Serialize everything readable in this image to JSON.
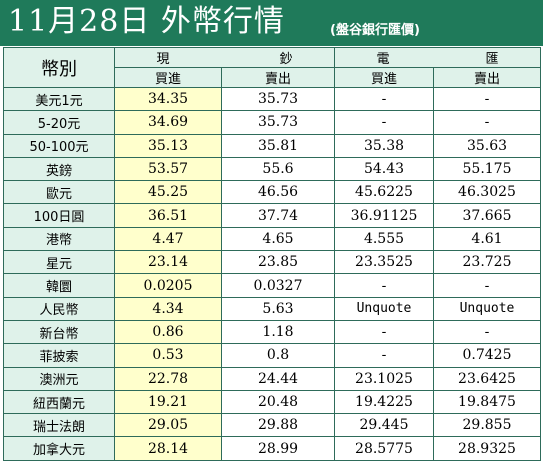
{
  "title": {
    "main": "11月28日 外幣行情",
    "sub": "(盤谷銀行匯價)"
  },
  "headers": {
    "currency": "幣別",
    "cash_left": "現",
    "cash_right": "鈔",
    "spot_left": "電",
    "spot_right": "匯",
    "buy": "買進",
    "sell": "賣出"
  },
  "rows": [
    {
      "name": "美元1元",
      "cash_buy": "34.35",
      "cash_sell": "35.73",
      "spot_buy": "-",
      "spot_sell": "-"
    },
    {
      "name": "5-20元",
      "cash_buy": "34.69",
      "cash_sell": "35.73",
      "spot_buy": "-",
      "spot_sell": "-"
    },
    {
      "name": "50-100元",
      "cash_buy": "35.13",
      "cash_sell": "35.81",
      "spot_buy": "35.38",
      "spot_sell": "35.63"
    },
    {
      "name": "英鎊",
      "cash_buy": "53.57",
      "cash_sell": "55.6",
      "spot_buy": "54.43",
      "spot_sell": "55.175"
    },
    {
      "name": "歐元",
      "cash_buy": "45.25",
      "cash_sell": "46.56",
      "spot_buy": "45.6225",
      "spot_sell": "46.3025"
    },
    {
      "name": "100日圓",
      "cash_buy": "36.51",
      "cash_sell": "37.74",
      "spot_buy": "36.91125",
      "spot_sell": "37.665"
    },
    {
      "name": "港幣",
      "cash_buy": "4.47",
      "cash_sell": "4.65",
      "spot_buy": "4.555",
      "spot_sell": "4.61"
    },
    {
      "name": "星元",
      "cash_buy": "23.14",
      "cash_sell": "23.85",
      "spot_buy": "23.3525",
      "spot_sell": "23.725"
    },
    {
      "name": "韓圜",
      "cash_buy": "0.0205",
      "cash_sell": "0.0327",
      "spot_buy": "-",
      "spot_sell": "-"
    },
    {
      "name": "人民幣",
      "cash_buy": "4.34",
      "cash_sell": "5.63",
      "spot_buy": "Unquote",
      "spot_sell": "Unquote"
    },
    {
      "name": "新台幣",
      "cash_buy": "0.86",
      "cash_sell": "1.18",
      "spot_buy": "-",
      "spot_sell": "-"
    },
    {
      "name": "菲披索",
      "cash_buy": "0.53",
      "cash_sell": "0.8",
      "spot_buy": "-",
      "spot_sell": "0.7425"
    },
    {
      "name": "澳洲元",
      "cash_buy": "22.78",
      "cash_sell": "24.44",
      "spot_buy": "23.1025",
      "spot_sell": "23.6425"
    },
    {
      "name": "紐西蘭元",
      "cash_buy": "19.21",
      "cash_sell": "20.48",
      "spot_buy": "19.4225",
      "spot_sell": "19.8475"
    },
    {
      "name": "瑞士法朗",
      "cash_buy": "29.05",
      "cash_sell": "29.88",
      "spot_buy": "29.445",
      "spot_sell": "29.855"
    },
    {
      "name": "加拿大元",
      "cash_buy": "28.14",
      "cash_sell": "28.99",
      "spot_buy": "28.5775",
      "spot_sell": "28.9325"
    }
  ],
  "colors": {
    "title_bg": "#1f7a5a",
    "header_bg": "#dff2ea",
    "cash_bg": "#ffffcc",
    "grid": "#2e6b5a"
  }
}
